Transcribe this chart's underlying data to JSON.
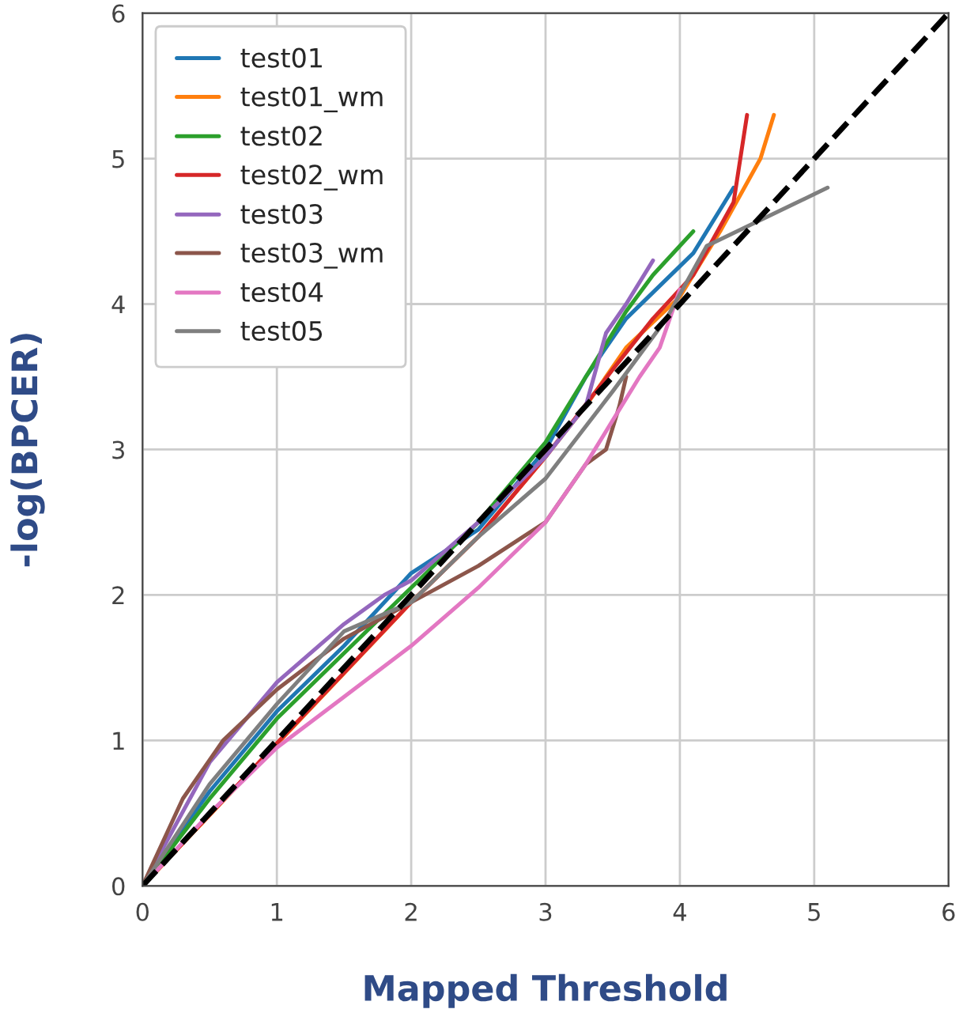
{
  "chart_data": {
    "type": "line",
    "xlabel": "Mapped Threshold",
    "ylabel": "-log(BPCER)",
    "xlim": [
      0,
      6
    ],
    "ylim": [
      0,
      6
    ],
    "xticks": [
      0,
      1,
      2,
      3,
      4,
      5,
      6
    ],
    "yticks": [
      0,
      1,
      2,
      3,
      4,
      5,
      6
    ],
    "grid": true,
    "legend": "top left",
    "line_style": "solid",
    "marker": "none",
    "series": [
      {
        "name": "test01",
        "color": "#1f77b4",
        "x": [
          0,
          0.5,
          1,
          1.5,
          2,
          2.5,
          3,
          3.3,
          3.6,
          4.1,
          4.4
        ],
        "values": [
          0,
          0.65,
          1.2,
          1.65,
          2.15,
          2.45,
          3.0,
          3.5,
          3.9,
          4.35,
          4.8
        ]
      },
      {
        "name": "test01_wm",
        "color": "#ff7f0e",
        "x": [
          0,
          2,
          2.5,
          3,
          3.3,
          3.6,
          4,
          4.3,
          4.6,
          4.7
        ],
        "values": [
          0,
          1.95,
          2.4,
          2.95,
          3.3,
          3.7,
          4.05,
          4.5,
          5.0,
          5.3
        ]
      },
      {
        "name": "test02",
        "color": "#2ca02c",
        "x": [
          0,
          0.5,
          1,
          1.5,
          2,
          2.5,
          3,
          3.3,
          3.6,
          3.8,
          4.1
        ],
        "values": [
          0,
          0.6,
          1.15,
          1.6,
          2.05,
          2.5,
          3.05,
          3.5,
          3.95,
          4.2,
          4.5
        ]
      },
      {
        "name": "test02_wm",
        "color": "#d62728",
        "x": [
          0,
          1,
          2,
          2.5,
          3,
          3.5,
          3.8,
          4.1,
          4.4,
          4.5
        ],
        "values": [
          0,
          0.98,
          1.95,
          2.4,
          2.95,
          3.55,
          3.9,
          4.2,
          4.7,
          5.3
        ]
      },
      {
        "name": "test03",
        "color": "#9467bd",
        "x": [
          0,
          0.5,
          1,
          1.5,
          1.8,
          2,
          2.5,
          3,
          3.3,
          3.45,
          3.6,
          3.8
        ],
        "values": [
          0,
          0.85,
          1.4,
          1.8,
          2.0,
          2.1,
          2.5,
          2.95,
          3.3,
          3.8,
          4.0,
          4.3
        ]
      },
      {
        "name": "test03_wm",
        "color": "#8c564b",
        "x": [
          0,
          0.3,
          0.6,
          1,
          1.5,
          2,
          2.5,
          3,
          3.3,
          3.45,
          3.55,
          3.6
        ],
        "values": [
          0,
          0.6,
          1.0,
          1.35,
          1.7,
          1.95,
          2.2,
          2.5,
          2.9,
          3.0,
          3.3,
          3.5
        ]
      },
      {
        "name": "test04",
        "color": "#e377c2",
        "x": [
          0,
          0.5,
          1,
          1.5,
          2,
          2.5,
          3,
          3.3,
          3.5,
          3.7,
          3.85,
          4
        ],
        "values": [
          0,
          0.5,
          0.95,
          1.3,
          1.65,
          2.05,
          2.5,
          2.9,
          3.2,
          3.5,
          3.7,
          4.1
        ]
      },
      {
        "name": "test05",
        "color": "#7f7f7f",
        "x": [
          0,
          0.5,
          1,
          1.5,
          2,
          2.5,
          3,
          3.5,
          3.9,
          4.2,
          5.1
        ],
        "values": [
          0,
          0.7,
          1.25,
          1.75,
          1.95,
          2.4,
          2.8,
          3.4,
          3.9,
          4.4,
          4.8
        ]
      },
      {
        "color": "#000000",
        "line_style": "dashed",
        "x": [
          0,
          6
        ],
        "values": [
          0,
          6
        ]
      }
    ]
  }
}
